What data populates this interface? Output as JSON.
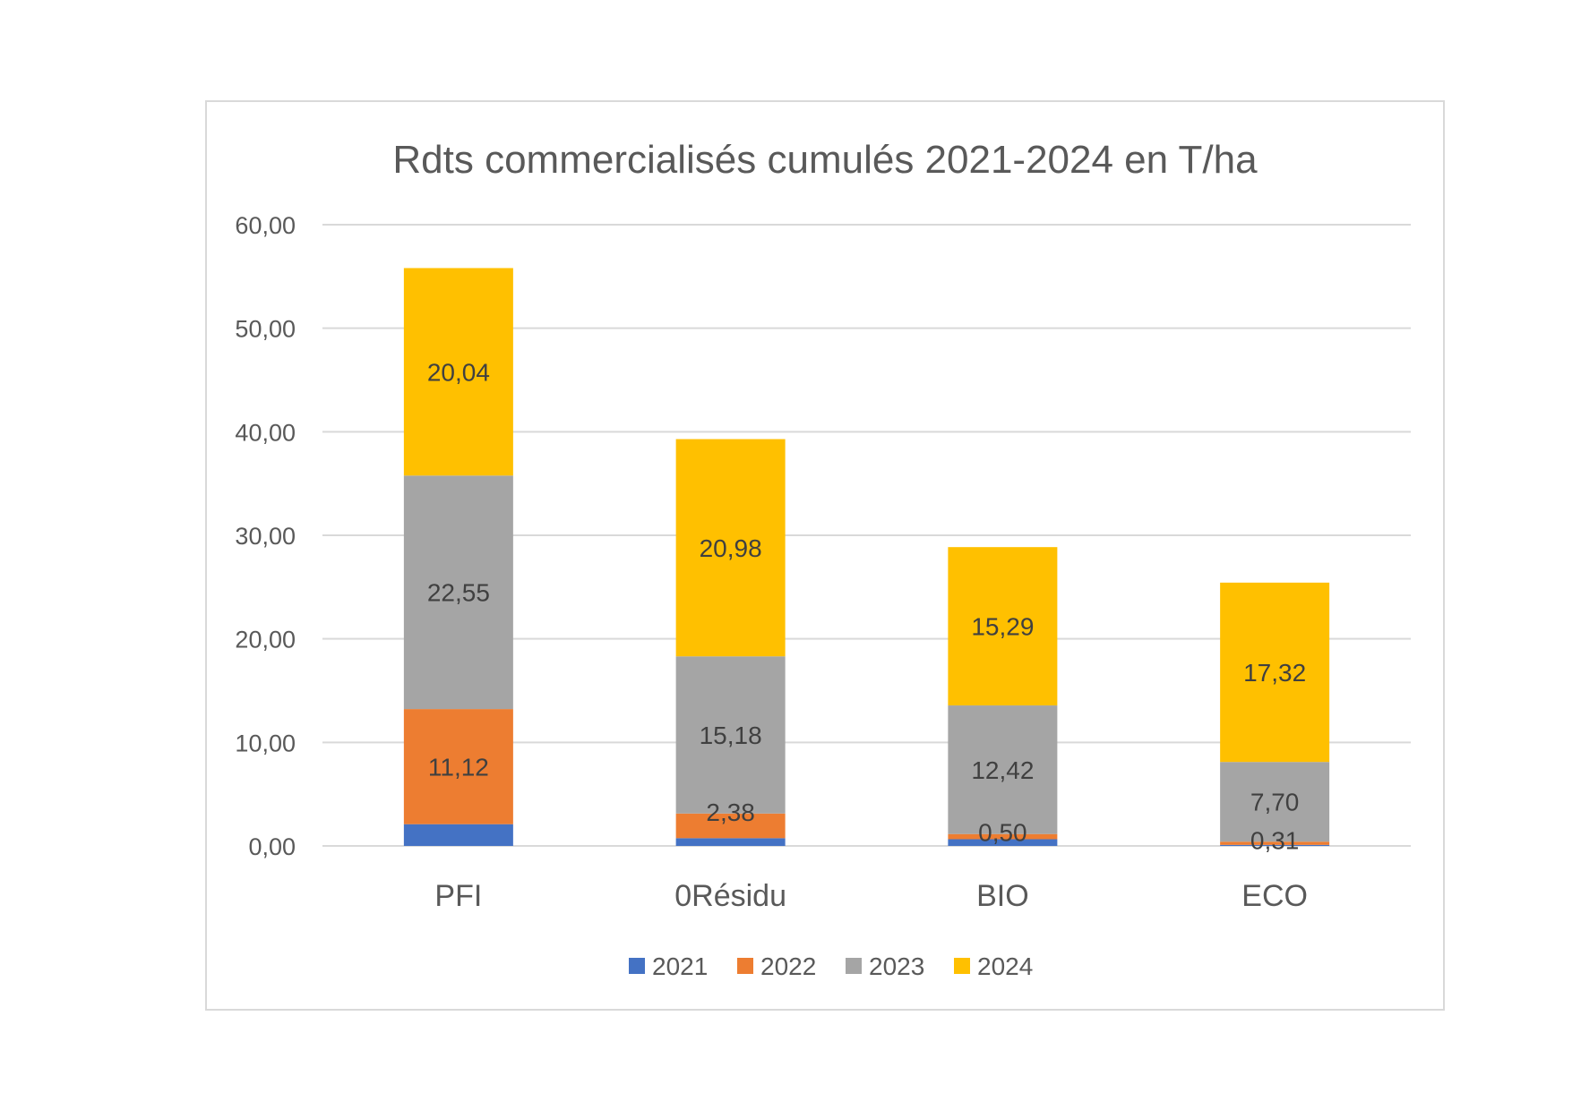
{
  "chart_data": {
    "type": "bar",
    "stacked": true,
    "title": "Rdts commercialisés cumulés 2021-2024 en T/ha",
    "xlabel": "",
    "ylabel": "",
    "categories": [
      "PFI",
      "0Résidu",
      "BIO",
      "ECO"
    ],
    "series": [
      {
        "name": "2021",
        "color": "#4472c4",
        "values": [
          2.1,
          0.75,
          0.65,
          0.1
        ],
        "labels": [
          "",
          "",
          "",
          ""
        ]
      },
      {
        "name": "2022",
        "color": "#ed7d31",
        "values": [
          11.12,
          2.38,
          0.5,
          0.31
        ],
        "labels": [
          "11,12",
          "2,38",
          "0,50",
          "0,31"
        ]
      },
      {
        "name": "2023",
        "color": "#a5a5a5",
        "values": [
          22.55,
          15.18,
          12.42,
          7.7
        ],
        "labels": [
          "22,55",
          "15,18",
          "12,42",
          "7,70"
        ]
      },
      {
        "name": "2024",
        "color": "#ffc000",
        "values": [
          20.04,
          20.98,
          15.29,
          17.32
        ],
        "labels": [
          "20,04",
          "20,98",
          "15,29",
          "17,32"
        ]
      }
    ],
    "ylim": [
      0,
      60
    ],
    "yticks": [
      "0,00",
      "10,00",
      "20,00",
      "30,00",
      "40,00",
      "50,00",
      "60,00"
    ],
    "grid": true,
    "legend": "bottom"
  }
}
